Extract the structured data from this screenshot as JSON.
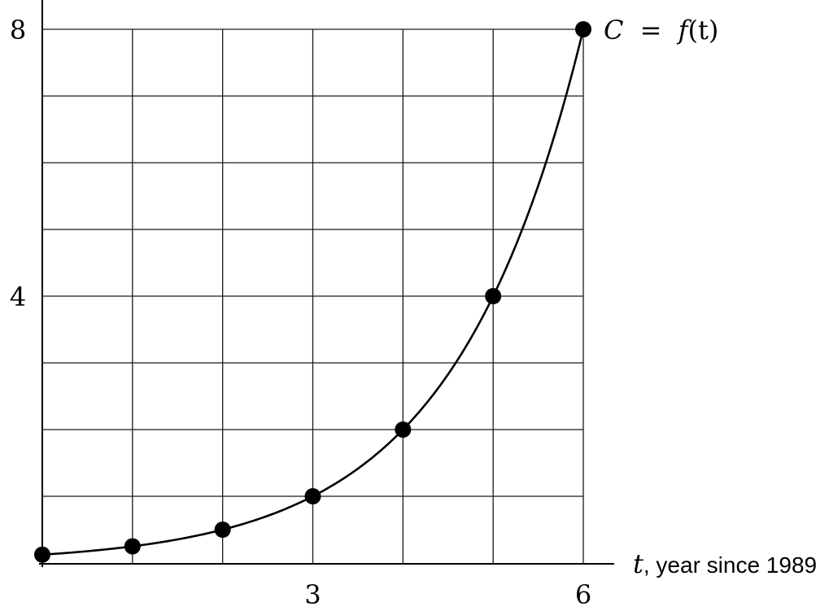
{
  "chart_data": {
    "type": "line",
    "x": [
      0,
      1,
      2,
      3,
      4,
      5,
      6
    ],
    "series": [
      {
        "name": "C = f(t)",
        "values": [
          0.125,
          0.25,
          0.5,
          1,
          2,
          4,
          8
        ]
      }
    ],
    "curve_label": {
      "lhs": "C",
      "op": "=",
      "fn": "f",
      "arg": "(t)"
    },
    "xlabel": {
      "var": "t",
      "text": ", year since 1989"
    },
    "ylabel": "",
    "xlim": [
      0,
      6
    ],
    "ylim": [
      0,
      8
    ],
    "x_ticks": [
      3,
      6
    ],
    "y_ticks": [
      4,
      8
    ],
    "x_tick_labels": [
      "3",
      "6"
    ],
    "y_tick_labels": [
      "4",
      "8"
    ],
    "x_grid_step": 1,
    "y_grid_step": 1,
    "grid": true,
    "markers": "filled circles",
    "line_color": "#000000"
  }
}
